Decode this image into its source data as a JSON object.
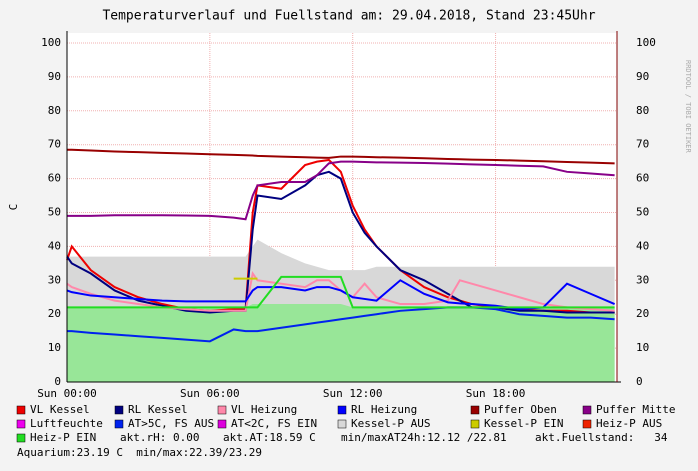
{
  "chart_data": {
    "type": "line",
    "title": "Temperaturverlauf und Fuellstand am: 29.04.2018, Stand 23:45Uhr",
    "y_label": "C",
    "side_label": "RRDTOOL / TOBI OETIKER",
    "x": [
      0,
      0.2,
      1,
      2,
      3,
      4,
      5,
      6,
      7,
      7.5,
      7.8,
      8,
      9,
      10,
      10.5,
      11,
      11.5,
      12,
      12.5,
      13,
      14,
      15,
      16,
      16.5,
      17,
      18,
      19,
      20,
      21,
      22,
      23
    ],
    "xlim": [
      0,
      23.1
    ],
    "xticks": [
      {
        "value": 0,
        "label": "Sun 00:00"
      },
      {
        "value": 6,
        "label": "Sun 06:00"
      },
      {
        "value": 12,
        "label": "Sun 12:00"
      },
      {
        "value": 18,
        "label": "Sun 18:00"
      }
    ],
    "ylim": [
      0,
      100
    ],
    "yticks": [
      0,
      10,
      20,
      30,
      40,
      50,
      60,
      70,
      80,
      90,
      100
    ],
    "grid": true,
    "fill_areas": [
      {
        "color": "#98e698",
        "values": [
          22,
          22,
          22,
          22,
          22,
          22,
          22,
          22,
          22,
          22,
          23,
          23,
          23,
          23,
          23,
          23,
          23,
          22,
          22,
          22,
          22,
          22,
          22,
          22,
          22,
          22,
          22,
          22,
          22,
          22,
          22
        ]
      }
    ],
    "series": [
      {
        "name": "VL Kessel",
        "color": "#ee0000",
        "values": [
          36,
          40,
          33,
          28,
          25,
          23,
          21.5,
          21,
          21.5,
          21.5,
          50,
          58,
          57,
          64,
          65,
          65.5,
          62,
          52,
          45,
          40,
          33,
          28,
          25,
          24,
          23,
          22,
          21.5,
          21,
          21,
          20.5,
          20.5
        ]
      },
      {
        "name": "RL Kessel",
        "color": "#000080",
        "values": [
          37,
          35,
          32,
          27,
          24,
          22.5,
          21,
          20.5,
          21,
          21,
          45,
          55,
          54,
          58,
          61,
          62,
          60,
          50,
          44,
          40,
          33,
          30,
          26,
          24,
          22,
          22,
          21,
          21,
          20.5,
          20.5,
          20.5
        ]
      },
      {
        "name": "VL Heizung",
        "color": "#ff88aa",
        "values": [
          29,
          28,
          26,
          24,
          23,
          22,
          21.5,
          21,
          21,
          21,
          32,
          30,
          29,
          28,
          30,
          30,
          27,
          25,
          29,
          25,
          23,
          23,
          24,
          30,
          29,
          27,
          25,
          23,
          22,
          21.5,
          21
        ]
      },
      {
        "name": "RL Heizung",
        "color": "#0000ff",
        "values": [
          27,
          26.5,
          25.5,
          25,
          24.5,
          24,
          23.8,
          23.8,
          23.8,
          23.8,
          27,
          28,
          28,
          27,
          28,
          28,
          27,
          25,
          24.5,
          24,
          30,
          26,
          23.5,
          23.2,
          23,
          22.5,
          21.5,
          22,
          29,
          26,
          23
        ]
      },
      {
        "name": "Puffer Oben",
        "color": "#990000",
        "values": [
          68.5,
          68.5,
          68.3,
          68,
          67.8,
          67.6,
          67.4,
          67.2,
          67,
          66.9,
          66.8,
          66.7,
          66.5,
          66.3,
          66.2,
          66.1,
          66.5,
          66.5,
          66.4,
          66.3,
          66.2,
          66,
          65.8,
          65.7,
          65.6,
          65.5,
          65.3,
          65.1,
          64.9,
          64.7,
          64.5
        ]
      },
      {
        "name": "Puffer Mitte",
        "color": "#880088",
        "values": [
          49,
          49,
          49,
          49.2,
          49.2,
          49.2,
          49.1,
          49,
          48.5,
          48,
          55,
          58,
          59,
          59,
          61,
          64.5,
          65,
          65,
          64.9,
          64.8,
          64.7,
          64.6,
          64.4,
          64.3,
          64.2,
          64,
          63.8,
          63.6,
          62,
          61.5,
          61
        ]
      },
      {
        "name": "Luftfeuchte",
        "color": "#ee00ee",
        "values": [
          null,
          null,
          null,
          null,
          null,
          null,
          null,
          null,
          null,
          null,
          null,
          null,
          null,
          null,
          null,
          null,
          null,
          null,
          null,
          null,
          null,
          null,
          null,
          null,
          null,
          null,
          null,
          null,
          null,
          null,
          null
        ]
      },
      {
        "name": "AT>5C, FS AUS",
        "color": "#0022ee",
        "values": [
          15,
          15,
          14.5,
          14,
          13.5,
          13,
          12.5,
          12,
          15.5,
          15,
          15,
          15,
          16,
          17,
          17.5,
          18,
          18.5,
          19,
          19.5,
          20,
          21,
          21.5,
          22,
          22,
          22,
          21.5,
          20,
          19.5,
          19,
          19,
          18.5
        ]
      },
      {
        "name": "AT<2C, FS EIN",
        "color": "#dd00dd",
        "values": [
          null,
          null,
          null,
          null,
          null,
          null,
          null,
          null,
          null,
          null,
          null,
          null,
          null,
          null,
          null,
          null,
          null,
          null,
          null,
          null,
          null,
          null,
          null,
          null,
          null,
          null,
          null,
          null,
          null,
          null,
          null
        ]
      },
      {
        "name": "Kessel-P AUS",
        "color": "#d8d8d8",
        "style": "area",
        "values": [
          37,
          37,
          37,
          37,
          37,
          37,
          37,
          37,
          37,
          37,
          40,
          42,
          38,
          35,
          34,
          33,
          33,
          33,
          33,
          34,
          34,
          34,
          34,
          34,
          34,
          34,
          34,
          34,
          34,
          34,
          34
        ]
      },
      {
        "name": "Kessel-P EIN",
        "color": "#cccc00",
        "values": [
          null,
          null,
          null,
          null,
          null,
          null,
          null,
          null,
          30.5,
          30.5,
          30.5,
          30.5,
          null,
          null,
          null,
          null,
          null,
          null,
          null,
          null,
          null,
          null,
          null,
          null,
          null,
          null,
          null,
          null,
          null,
          null,
          null
        ]
      },
      {
        "name": "Heiz-P AUS",
        "color": "#ee2200",
        "values": [
          null,
          null,
          null,
          null,
          null,
          null,
          null,
          null,
          null,
          null,
          null,
          null,
          null,
          null,
          null,
          null,
          null,
          null,
          null,
          null,
          null,
          null,
          null,
          null,
          null,
          null,
          null,
          null,
          null,
          null,
          null
        ]
      },
      {
        "name": "Heiz-P EIN",
        "color": "#22dd22",
        "values": [
          22,
          22,
          22,
          22,
          22,
          22,
          22,
          22,
          22,
          22,
          22,
          22,
          31,
          31,
          31,
          31,
          31,
          22,
          22,
          22,
          22,
          22,
          22,
          22,
          22,
          22,
          22,
          22,
          22,
          22,
          22
        ]
      }
    ],
    "info": [
      "akt.rH: 0.00",
      "akt.AT:18.59 C",
      "min/maxAT24h:12.12 /22.81",
      "akt.Fuellstand:   34"
    ],
    "footer": "Aquarium:23.19 C  min/max:22.39/23.29"
  }
}
